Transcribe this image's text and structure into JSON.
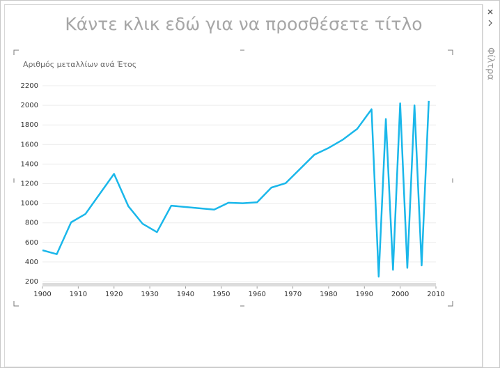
{
  "page_title": "Κάντε κλικ εδώ για να προσθέσετε τίτλο",
  "filters_pane": {
    "label": "Φίλτρα"
  },
  "chart_data": {
    "type": "line",
    "title": "Αριθμός μεταλλίων ανά Έτος",
    "x": [
      1900,
      1904,
      1908,
      1912,
      1920,
      1924,
      1928,
      1932,
      1936,
      1948,
      1952,
      1956,
      1960,
      1964,
      1968,
      1976,
      1980,
      1984,
      1988,
      1992,
      1994,
      1996,
      1998,
      2000,
      2002,
      2004,
      2006,
      2008
    ],
    "series": [
      {
        "color": "#1ab7ea",
        "values": [
          520,
          480,
          805,
          890,
          1300,
          970,
          790,
          705,
          975,
          935,
          1005,
          1000,
          1010,
          1160,
          1205,
          1495,
          1565,
          1650,
          1760,
          1960,
          250,
          1860,
          320,
          2020,
          340,
          2000,
          365,
          2045
        ]
      }
    ],
    "xlim": [
      1900,
      2010
    ],
    "xticks": [
      1900,
      1910,
      1920,
      1930,
      1940,
      1950,
      1960,
      1970,
      1980,
      1990,
      2000,
      2010
    ],
    "ylim": [
      200,
      2200
    ],
    "yticks": [
      200,
      400,
      600,
      800,
      1000,
      1200,
      1400,
      1600,
      1800,
      2000,
      2200
    ],
    "grid": true
  }
}
